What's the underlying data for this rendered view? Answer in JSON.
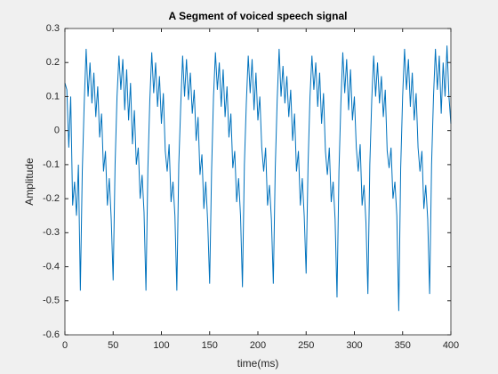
{
  "chart_data": {
    "type": "line",
    "title": "A Segment of voiced speech signal",
    "xlabel": "time(ms)",
    "ylabel": "Amplitude",
    "xlim": [
      0,
      400
    ],
    "xticks": [
      0,
      50,
      100,
      150,
      200,
      250,
      300,
      350,
      400
    ],
    "ylim": [
      -0.6,
      0.3
    ],
    "yticks": [
      -0.6,
      -0.5,
      -0.4,
      -0.3,
      -0.2,
      -0.1,
      0,
      0.1,
      0.2,
      0.3
    ],
    "x": [
      0,
      2,
      4,
      6,
      8,
      10,
      12,
      14,
      16,
      18,
      20,
      22,
      24,
      26,
      28,
      30,
      32,
      34,
      36,
      38,
      40,
      42,
      44,
      46,
      48,
      50,
      52,
      54,
      56,
      58,
      60,
      62,
      64,
      66,
      68,
      70,
      72,
      74,
      76,
      78,
      80,
      82,
      84,
      86,
      88,
      90,
      92,
      94,
      96,
      98,
      100,
      102,
      104,
      106,
      108,
      110,
      112,
      114,
      116,
      118,
      120,
      122,
      124,
      126,
      128,
      130,
      132,
      134,
      136,
      138,
      140,
      142,
      144,
      146,
      148,
      150,
      152,
      154,
      156,
      158,
      160,
      162,
      164,
      166,
      168,
      170,
      172,
      174,
      176,
      178,
      180,
      182,
      184,
      186,
      188,
      190,
      192,
      194,
      196,
      198,
      200,
      202,
      204,
      206,
      208,
      210,
      212,
      214,
      216,
      218,
      220,
      222,
      224,
      226,
      228,
      230,
      232,
      234,
      236,
      238,
      240,
      242,
      244,
      246,
      248,
      250,
      252,
      254,
      256,
      258,
      260,
      262,
      264,
      266,
      268,
      270,
      272,
      274,
      276,
      278,
      280,
      282,
      284,
      286,
      288,
      290,
      292,
      294,
      296,
      298,
      300,
      302,
      304,
      306,
      308,
      310,
      312,
      314,
      316,
      318,
      320,
      322,
      324,
      326,
      328,
      330,
      332,
      334,
      336,
      338,
      340,
      342,
      344,
      346,
      348,
      350,
      352,
      354,
      356,
      358,
      360,
      362,
      364,
      366,
      368,
      370,
      372,
      374,
      376,
      378,
      380,
      382,
      384,
      386,
      388,
      390,
      392,
      394,
      396,
      398,
      400
    ],
    "series": [
      {
        "color": "#0072bd",
        "values": [
          0.14,
          0.12,
          -0.05,
          0.1,
          -0.22,
          -0.15,
          -0.25,
          -0.1,
          -0.47,
          -0.12,
          0.08,
          0.24,
          0.1,
          0.2,
          0.08,
          0.17,
          0.04,
          0.13,
          -0.02,
          0.05,
          -0.12,
          -0.06,
          -0.22,
          -0.14,
          -0.26,
          -0.44,
          -0.1,
          0.1,
          0.22,
          0.12,
          0.21,
          0.06,
          0.18,
          0.03,
          0.14,
          -0.04,
          0.06,
          -0.1,
          -0.05,
          -0.2,
          -0.13,
          -0.24,
          -0.47,
          -0.11,
          0.09,
          0.23,
          0.11,
          0.2,
          0.07,
          0.16,
          0.02,
          0.11,
          -0.06,
          -0.12,
          -0.04,
          -0.21,
          -0.15,
          -0.25,
          -0.47,
          -0.1,
          0.07,
          0.22,
          0.1,
          0.21,
          0.09,
          0.17,
          0.05,
          0.12,
          -0.03,
          0.04,
          -0.13,
          -0.07,
          -0.23,
          -0.15,
          -0.27,
          -0.45,
          -0.12,
          0.1,
          0.23,
          0.12,
          0.2,
          0.07,
          0.18,
          0.04,
          0.13,
          -0.02,
          0.05,
          -0.11,
          -0.06,
          -0.21,
          -0.14,
          -0.25,
          -0.46,
          -0.1,
          0.08,
          0.22,
          0.11,
          0.21,
          0.06,
          0.17,
          0.03,
          0.1,
          -0.05,
          -0.12,
          -0.05,
          -0.22,
          -0.16,
          -0.26,
          -0.45,
          -0.11,
          0.09,
          0.24,
          0.1,
          0.19,
          0.08,
          0.16,
          0.04,
          0.12,
          -0.03,
          0.05,
          -0.12,
          -0.06,
          -0.22,
          -0.14,
          -0.25,
          -0.42,
          -0.1,
          0.1,
          0.22,
          0.12,
          0.2,
          0.07,
          0.17,
          0.02,
          0.11,
          -0.06,
          -0.13,
          -0.05,
          -0.21,
          -0.15,
          -0.26,
          -0.49,
          -0.12,
          0.08,
          0.23,
          0.11,
          0.21,
          0.06,
          0.18,
          0.03,
          0.1,
          -0.05,
          -0.12,
          -0.04,
          -0.22,
          -0.16,
          -0.27,
          -0.48,
          -0.1,
          0.09,
          0.22,
          0.1,
          0.2,
          0.08,
          0.16,
          0.04,
          0.12,
          -0.06,
          -0.11,
          -0.05,
          -0.2,
          -0.15,
          -0.25,
          -0.53,
          -0.11,
          0.1,
          0.24,
          0.12,
          0.21,
          0.07,
          0.17,
          0.03,
          0.11,
          -0.05,
          -0.12,
          -0.06,
          -0.23,
          -0.16,
          -0.26,
          -0.48,
          -0.1,
          0.1,
          0.24,
          0.12,
          0.22,
          0.05,
          0.2,
          0.1,
          0.25,
          0.1,
          0.02
        ]
      }
    ]
  }
}
